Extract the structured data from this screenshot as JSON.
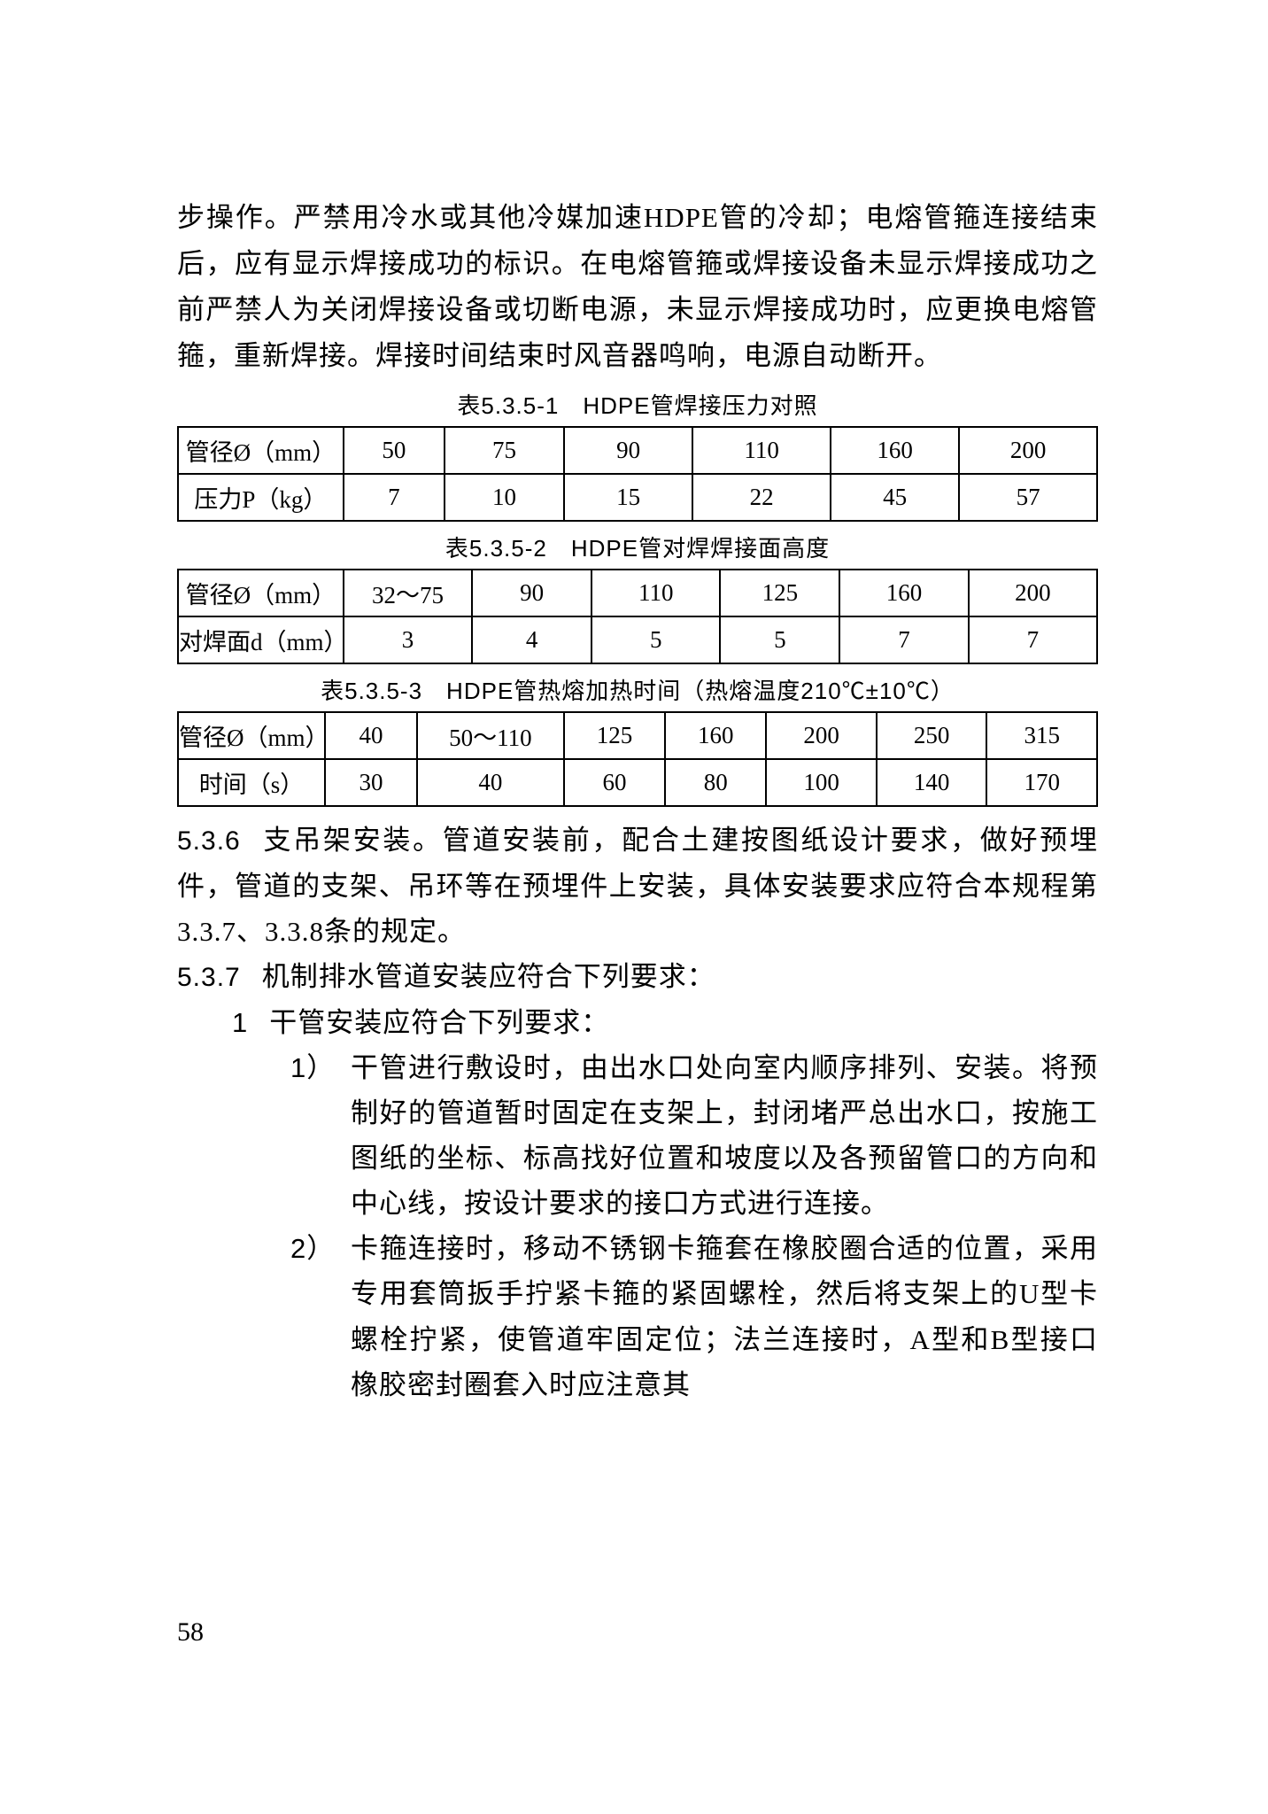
{
  "intro_paragraph": "步操作。严禁用冷水或其他冷媒加速HDPE管的冷却；电熔管箍连接结束后，应有显示焊接成功的标识。在电熔管箍或焊接设备未显示焊接成功之前严禁人为关闭焊接设备或切断电源，未显示焊接成功时，应更换电熔管箍，重新焊接。焊接时间结束时风音器鸣响，电源自动断开。",
  "table1": {
    "caption": "表5.3.5-1 HDPE管焊接压力对照",
    "col_widths": [
      "18%",
      "11%",
      "13%",
      "14%",
      "15%",
      "14%",
      "15%"
    ],
    "rows": [
      [
        "管径Ø（mm）",
        "50",
        "75",
        "90",
        "110",
        "160",
        "200"
      ],
      [
        "压力P（kg）",
        "7",
        "10",
        "15",
        "22",
        "45",
        "57"
      ]
    ]
  },
  "table2": {
    "caption": "表5.3.5-2 HDPE管对焊焊接面高度",
    "col_widths": [
      "18%",
      "14%",
      "13%",
      "14%",
      "13%",
      "14%",
      "14%"
    ],
    "rows": [
      [
        "管径Ø（mm）",
        "32～75",
        "90",
        "110",
        "125",
        "160",
        "200"
      ],
      [
        "对焊面d（mm）",
        "3",
        "4",
        "5",
        "5",
        "7",
        "7"
      ]
    ]
  },
  "table3": {
    "caption": "表5.3.5-3 HDPE管热熔加热时间（热熔温度210℃±10℃）",
    "col_widths": [
      "16%",
      "10%",
      "16%",
      "11%",
      "11%",
      "12%",
      "12%",
      "12%"
    ],
    "rows": [
      [
        "管径Ø（mm）",
        "40",
        "50～110",
        "125",
        "160",
        "200",
        "250",
        "315"
      ],
      [
        "时间（s）",
        "30",
        "40",
        "60",
        "80",
        "100",
        "140",
        "170"
      ]
    ]
  },
  "section_5_3_6": {
    "label": "5.3.6",
    "text": "支吊架安装。管道安装前，配合土建按图纸设计要求，做好预埋件，管道的支架、吊环等在预埋件上安装，具体安装要求应符合本规程第3.3.7、3.3.8条的规定。"
  },
  "section_5_3_7": {
    "label": "5.3.7",
    "text": "机制排水管道安装应符合下列要求：",
    "items": [
      {
        "num": "1",
        "text": "干管安装应符合下列要求：",
        "subitems": [
          {
            "num": "1）",
            "text": "干管进行敷设时，由出水口处向室内顺序排列、安装。将预制好的管道暂时固定在支架上，封闭堵严总出水口，按施工图纸的坐标、标高找好位置和坡度以及各预留管口的方向和中心线，按设计要求的接口方式进行连接。"
          },
          {
            "num": "2）",
            "text": "卡箍连接时，移动不锈钢卡箍套在橡胶圈合适的位置，采用专用套筒扳手拧紧卡箍的紧固螺栓，然后将支架上的U型卡螺栓拧紧，使管道牢固定位；法兰连接时，A型和B型接口橡胶密封圈套入时应注意其"
          }
        ]
      }
    ]
  },
  "page_number": "58"
}
